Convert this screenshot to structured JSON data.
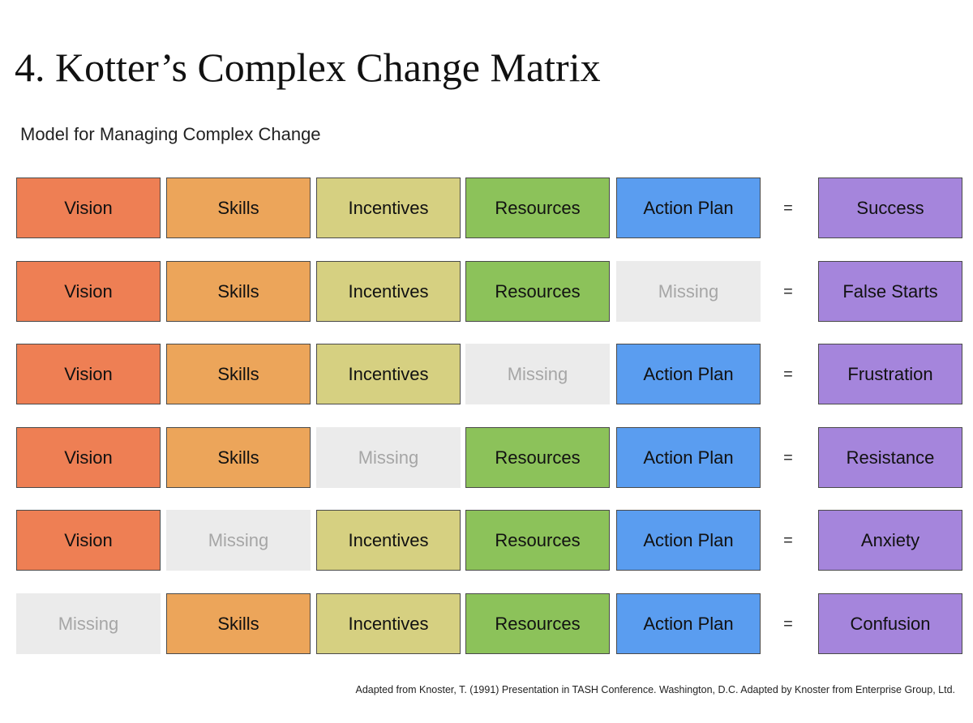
{
  "title": "4. Kotter’s Complex Change Matrix",
  "subtitle": "Model for Managing Complex Change",
  "equals_sign": "=",
  "colors": {
    "vision": "#ee7f54",
    "skills": "#eca55a",
    "incentives": "#d6d081",
    "resources": "#8cc25a",
    "action_plan": "#5a9df0",
    "outcome": "#a585dc",
    "missing": "#ebebeb"
  },
  "columns": [
    "vision",
    "skills",
    "incentives",
    "resources",
    "action_plan"
  ],
  "rows": [
    {
      "cells": [
        "Vision",
        "Skills",
        "Incentives",
        "Resources",
        "Action Plan"
      ],
      "missing": [
        false,
        false,
        false,
        false,
        false
      ],
      "outcome": "Success"
    },
    {
      "cells": [
        "Vision",
        "Skills",
        "Incentives",
        "Resources",
        "Missing"
      ],
      "missing": [
        false,
        false,
        false,
        false,
        true
      ],
      "outcome": "False Starts"
    },
    {
      "cells": [
        "Vision",
        "Skills",
        "Incentives",
        "Missing",
        "Action Plan"
      ],
      "missing": [
        false,
        false,
        false,
        true,
        false
      ],
      "outcome": "Frustration"
    },
    {
      "cells": [
        "Vision",
        "Skills",
        "Missing",
        "Resources",
        "Action Plan"
      ],
      "missing": [
        false,
        false,
        true,
        false,
        false
      ],
      "outcome": "Resistance"
    },
    {
      "cells": [
        "Vision",
        "Missing",
        "Incentives",
        "Resources",
        "Action Plan"
      ],
      "missing": [
        false,
        true,
        false,
        false,
        false
      ],
      "outcome": "Anxiety"
    },
    {
      "cells": [
        "Missing",
        "Skills",
        "Incentives",
        "Resources",
        "Action Plan"
      ],
      "missing": [
        true,
        false,
        false,
        false,
        false
      ],
      "outcome": "Confusion"
    }
  ],
  "footnote": "Adapted from Knoster, T. (1991) Presentation in TASH Conference. Washington, D.C. Adapted by Knoster from Enterprise Group, Ltd."
}
